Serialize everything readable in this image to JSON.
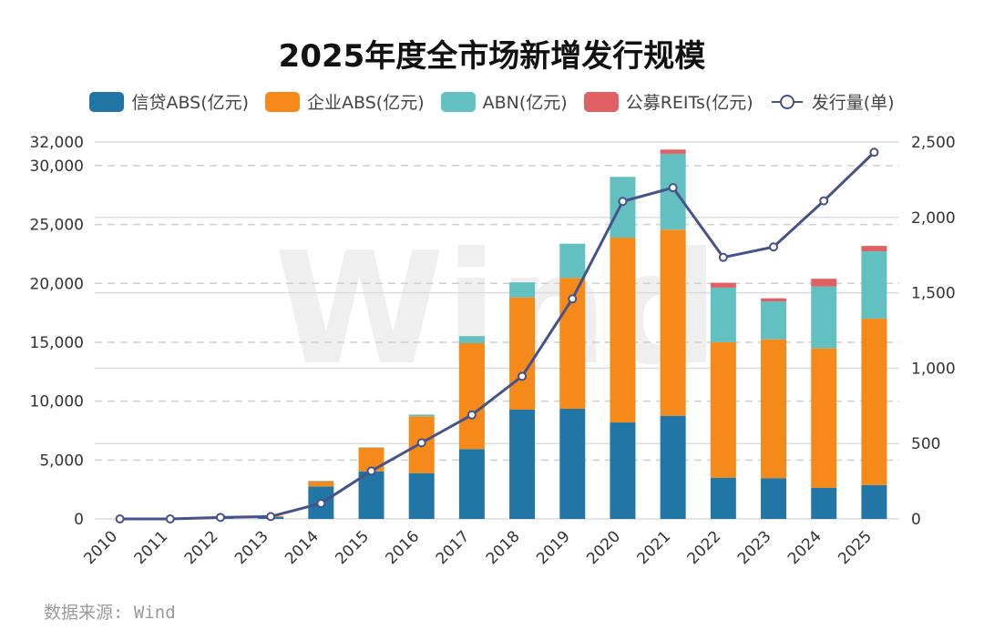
{
  "chart_data": {
    "type": "bar",
    "title": "2025年度全市场新增发行规模",
    "categories": [
      "2010",
      "2011",
      "2012",
      "2013",
      "2014",
      "2015",
      "2016",
      "2017",
      "2018",
      "2019",
      "2020",
      "2021",
      "2022",
      "2023",
      "2024",
      "2025"
    ],
    "series": [
      {
        "name": "信贷ABS(亿元)",
        "kind": "bar",
        "axis": "left",
        "color": "#2276a5",
        "values": [
          0,
          0,
          100,
          160,
          2760,
          4040,
          3890,
          5930,
          9280,
          9350,
          8190,
          8760,
          3500,
          3460,
          2650,
          2880
        ]
      },
      {
        "name": "企业ABS(亿元)",
        "kind": "bar",
        "axis": "left",
        "color": "#f58a1a",
        "values": [
          0,
          0,
          0,
          90,
          430,
          2010,
          4820,
          8990,
          9530,
          11110,
          15690,
          15800,
          11500,
          11790,
          11830,
          14120
        ]
      },
      {
        "name": "ABN(亿元)",
        "kind": "bar",
        "axis": "left",
        "color": "#62c0c0",
        "values": [
          0,
          0,
          0,
          0,
          50,
          30,
          150,
          600,
          1270,
          2910,
          5160,
          6440,
          4640,
          3220,
          5260,
          5720
        ]
      },
      {
        "name": "公募REITs(亿元)",
        "kind": "bar",
        "axis": "left",
        "color": "#e06164",
        "values": [
          0,
          0,
          0,
          0,
          0,
          0,
          0,
          0,
          0,
          0,
          0,
          360,
          410,
          260,
          650,
          460
        ]
      },
      {
        "name": "发行量(单)",
        "kind": "line",
        "axis": "right",
        "color": "#46528a",
        "values": [
          0,
          0,
          10,
          16,
          103,
          318,
          505,
          690,
          946,
          1460,
          2106,
          2197,
          1735,
          1804,
          2110,
          2432
        ]
      }
    ],
    "y_left": {
      "label": "",
      "range": [
        0,
        32000
      ],
      "ticks": [
        0,
        5000,
        10000,
        15000,
        20000,
        25000,
        30000,
        32000
      ],
      "tick_labels": [
        "0",
        "5,000",
        "10,000",
        "15,000",
        "20,000",
        "25,000",
        "30,000",
        "32,000"
      ]
    },
    "y_right": {
      "label": "",
      "range": [
        0,
        2500
      ],
      "ticks": [
        0,
        500,
        1000,
        1500,
        2000,
        2500
      ],
      "tick_labels": [
        "0",
        "500",
        "1,000",
        "1,500",
        "2,000",
        "2,500"
      ]
    },
    "stacked": true,
    "legend_position": "top-center",
    "grid": true,
    "watermark": "Wind"
  },
  "source_note": "数据来源: Wind"
}
